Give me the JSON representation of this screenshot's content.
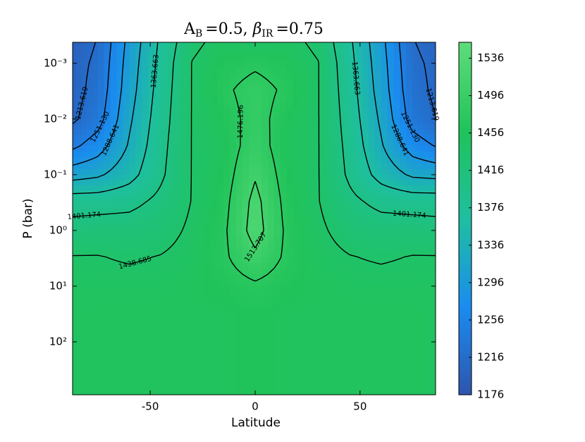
{
  "chart_data": {
    "type": "contour",
    "title_parts": [
      "A",
      "B",
      "=0.5, ",
      "β",
      "IR",
      "=0.75"
    ],
    "xlabel": "Latitude",
    "ylabel": "P (bar)",
    "xlim": [
      -87,
      86
    ],
    "xticks": [
      -50,
      0,
      50
    ],
    "ylim": [
      0.00042,
      890
    ],
    "y_log": true,
    "y_inverted": true,
    "yticks": [
      {
        "value": 0.001,
        "label": "10⁻³"
      },
      {
        "value": 0.01,
        "label": "10⁻²"
      },
      {
        "value": 0.1,
        "label": "10⁻¹"
      },
      {
        "value": 1,
        "label": "10⁰"
      },
      {
        "value": 10,
        "label": "10¹"
      },
      {
        "value": 100,
        "label": "10²"
      }
    ],
    "x": [
      -88,
      -75,
      -60,
      -45,
      -30,
      -15,
      0,
      15,
      30,
      45,
      60,
      75,
      88
    ],
    "y": [
      0.0004,
      0.001,
      0.003,
      0.01,
      0.03,
      0.1,
      0.3,
      1,
      3,
      10,
      30,
      100,
      1000
    ],
    "z": [
      [
        1195,
        1215,
        1300,
        1370,
        1430,
        1450,
        1440,
        1450,
        1430,
        1370,
        1300,
        1215,
        1200
      ],
      [
        1200,
        1220,
        1305,
        1375,
        1440,
        1460,
        1470,
        1460,
        1440,
        1375,
        1305,
        1220,
        1205
      ],
      [
        1200,
        1225,
        1310,
        1380,
        1440,
        1470,
        1490,
        1470,
        1440,
        1380,
        1310,
        1225,
        1205
      ],
      [
        1205,
        1235,
        1320,
        1385,
        1440,
        1460,
        1490,
        1460,
        1440,
        1385,
        1320,
        1235,
        1210
      ],
      [
        1240,
        1270,
        1330,
        1390,
        1440,
        1455,
        1495,
        1455,
        1440,
        1390,
        1330,
        1270,
        1245
      ],
      [
        1310,
        1320,
        1350,
        1395,
        1440,
        1460,
        1510,
        1460,
        1440,
        1395,
        1350,
        1320,
        1315
      ],
      [
        1385,
        1385,
        1390,
        1410,
        1440,
        1465,
        1525,
        1465,
        1440,
        1410,
        1390,
        1385,
        1385
      ],
      [
        1415,
        1420,
        1420,
        1425,
        1445,
        1470,
        1530,
        1470,
        1445,
        1425,
        1420,
        1420,
        1415
      ],
      [
        1440,
        1440,
        1435,
        1440,
        1450,
        1470,
        1505,
        1470,
        1450,
        1440,
        1435,
        1440,
        1440
      ],
      [
        1450,
        1450,
        1450,
        1450,
        1455,
        1460,
        1470,
        1460,
        1455,
        1450,
        1450,
        1450,
        1450
      ],
      [
        1450,
        1455,
        1455,
        1455,
        1455,
        1455,
        1460,
        1455,
        1455,
        1455,
        1455,
        1455,
        1450
      ],
      [
        1450,
        1455,
        1455,
        1455,
        1455,
        1455,
        1460,
        1455,
        1455,
        1455,
        1455,
        1455,
        1450
      ],
      [
        1450,
        1455,
        1455,
        1455,
        1455,
        1455,
        1460,
        1455,
        1455,
        1455,
        1455,
        1455,
        1450
      ]
    ],
    "levels": [
      1213.619,
      1251.13,
      1288.641,
      1326.152,
      1363.663,
      1401.174,
      1438.685,
      1476.196,
      1513.707
    ],
    "level_labels": [
      "1213.619",
      "1251.130",
      "1288.641",
      "1326.152",
      "1363.663",
      "1401.174",
      "1438.685",
      "1476.196",
      "1513.707"
    ],
    "clim": [
      1176,
      1553
    ],
    "cticks": [
      1176,
      1216,
      1256,
      1296,
      1336,
      1376,
      1416,
      1456,
      1496,
      1536
    ],
    "colormap": [
      "#2e55ad",
      "#1a8cf0",
      "#1ebfa0",
      "#20c35a",
      "#5edd7a"
    ],
    "line_color": "#000000"
  }
}
